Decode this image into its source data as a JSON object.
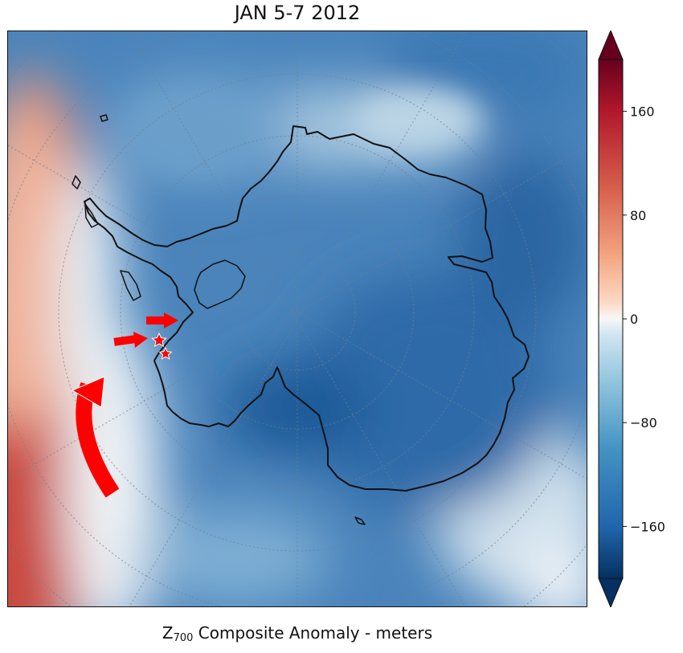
{
  "title": "JAN 5-7 2012",
  "caption": {
    "var": "Z",
    "level": "700",
    "rest": " Composite Anomaly - meters"
  },
  "colorbar": {
    "ticks": [
      "160",
      "80",
      "0",
      "−80",
      "−160"
    ],
    "tick_values": [
      160,
      80,
      0,
      -80,
      -160
    ],
    "range": [
      -200,
      200
    ],
    "colormap": "RdBu_r",
    "extend": "both",
    "colors": {
      "max": "#67001f",
      "high": "#d6604d",
      "mid": "#f7f7f7",
      "low": "#4393c3",
      "min": "#053061"
    }
  },
  "map": {
    "projection": "south polar stereographic",
    "graticule": "dotted",
    "coastline_color": "#111111",
    "annotation_color": "#ff0000",
    "markers": [
      "star-marker-north",
      "star-marker-south"
    ],
    "arrows": [
      "arrow-upper",
      "arrow-lower",
      "curved-arrow"
    ]
  }
}
